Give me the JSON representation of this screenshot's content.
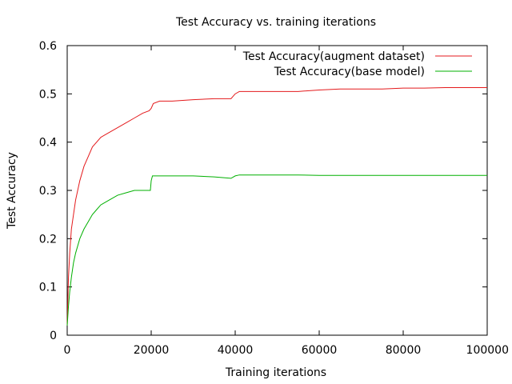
{
  "chart_data": {
    "type": "line",
    "title": "Test Accuracy vs. training iterations",
    "xlabel": "Training iterations",
    "ylabel": "Test Accuracy",
    "xlim": [
      0,
      100000
    ],
    "ylim": [
      0,
      0.6
    ],
    "xticks": [
      "0",
      "20000",
      "40000",
      "60000",
      "80000",
      "100000"
    ],
    "yticks": [
      "0",
      "0.1",
      "0.2",
      "0.3",
      "0.4",
      "0.5",
      "0.6"
    ],
    "grid": false,
    "legend_position": "top-right",
    "series": [
      {
        "name": "Test Accuracy(augment dataset)",
        "color": "#e41a1c",
        "x": [
          0,
          300,
          600,
          1000,
          1500,
          2000,
          3000,
          4000,
          5000,
          6000,
          7000,
          8000,
          9000,
          10000,
          12000,
          14000,
          16000,
          18000,
          19500,
          20000,
          20500,
          22000,
          25000,
          30000,
          35000,
          39000,
          40000,
          41000,
          45000,
          50000,
          55000,
          60000,
          65000,
          70000,
          75000,
          80000,
          85000,
          90000,
          95000,
          100000
        ],
        "y": [
          0.02,
          0.12,
          0.17,
          0.22,
          0.25,
          0.28,
          0.32,
          0.35,
          0.37,
          0.39,
          0.4,
          0.41,
          0.415,
          0.42,
          0.43,
          0.44,
          0.45,
          0.46,
          0.465,
          0.47,
          0.48,
          0.485,
          0.485,
          0.488,
          0.49,
          0.49,
          0.5,
          0.505,
          0.505,
          0.505,
          0.505,
          0.508,
          0.51,
          0.51,
          0.51,
          0.512,
          0.512,
          0.513,
          0.513,
          0.513
        ]
      },
      {
        "name": "Test Accuracy(base model)",
        "color": "#00b000",
        "x": [
          0,
          300,
          600,
          1000,
          1500,
          2000,
          3000,
          4000,
          5000,
          6000,
          7000,
          8000,
          9000,
          10000,
          12000,
          14000,
          16000,
          18000,
          19800,
          20000,
          20300,
          22000,
          25000,
          30000,
          35000,
          39000,
          40000,
          41000,
          45000,
          50000,
          55000,
          60000,
          65000,
          70000,
          80000,
          90000,
          100000
        ],
        "y": [
          0.02,
          0.06,
          0.09,
          0.12,
          0.15,
          0.17,
          0.2,
          0.22,
          0.235,
          0.25,
          0.26,
          0.27,
          0.275,
          0.28,
          0.29,
          0.295,
          0.3,
          0.3,
          0.3,
          0.32,
          0.33,
          0.33,
          0.33,
          0.33,
          0.328,
          0.325,
          0.33,
          0.332,
          0.332,
          0.332,
          0.332,
          0.331,
          0.331,
          0.331,
          0.331,
          0.331,
          0.331
        ]
      }
    ]
  }
}
